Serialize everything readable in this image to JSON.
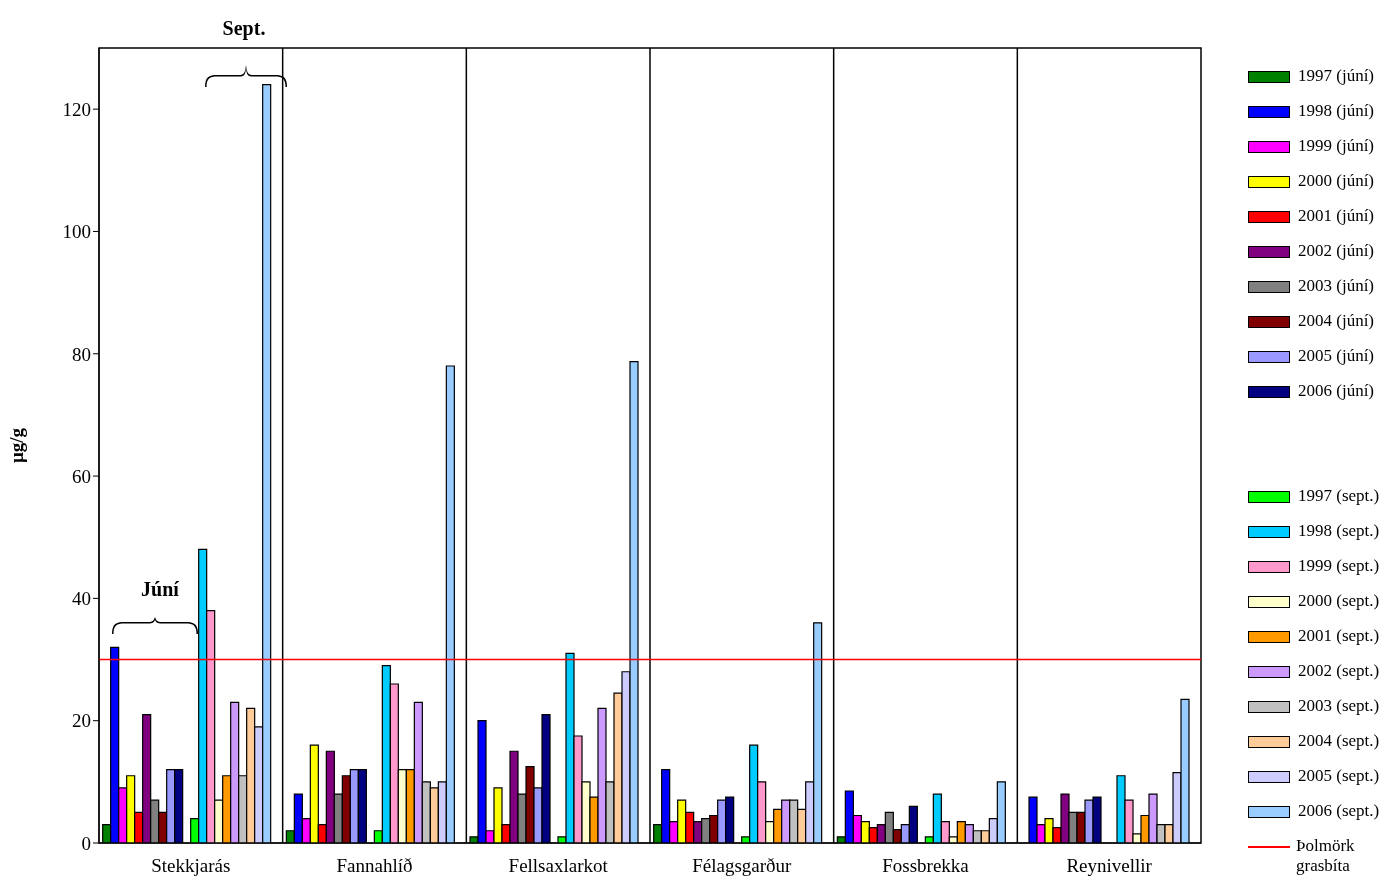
{
  "chart_data": {
    "type": "bar",
    "ylabel": "µg/g",
    "categories": [
      "Stekkjarás",
      "Fannahlíð",
      "Fellsaxlarkot",
      "Félagsgarður",
      "Fossbrekka",
      "Reynivellir"
    ],
    "series": [
      {
        "name": "1997 (júní)",
        "color": "#008000",
        "values": [
          3,
          2,
          1,
          3,
          1,
          null
        ]
      },
      {
        "name": "1998 (júní)",
        "color": "#0000ff",
        "values": [
          32,
          8,
          20,
          12,
          8.5,
          7.5
        ]
      },
      {
        "name": "1999 (júní)",
        "color": "#ff00ff",
        "values": [
          9,
          4,
          2,
          3.5,
          4.5,
          3
        ]
      },
      {
        "name": "2000 (júní)",
        "color": "#ffff00",
        "values": [
          11,
          16,
          9,
          7,
          3.5,
          4
        ]
      },
      {
        "name": "2001 (júní)",
        "color": "#ff0000",
        "values": [
          5,
          3,
          3,
          5,
          2.5,
          2.5
        ]
      },
      {
        "name": "2002 (júní)",
        "color": "#800080",
        "values": [
          21,
          15,
          15,
          3.5,
          3,
          8
        ]
      },
      {
        "name": "2003 (júní)",
        "color": "#808080",
        "values": [
          7,
          8,
          8,
          4,
          5,
          5
        ]
      },
      {
        "name": "2004 (júní)",
        "color": "#800000",
        "values": [
          5,
          11,
          12.5,
          4.5,
          2.2,
          5
        ]
      },
      {
        "name": "2005 (júní)",
        "color": "#9999ff",
        "values": [
          12,
          12,
          9,
          7,
          3,
          7
        ]
      },
      {
        "name": "2006 (júní)",
        "color": "#000080",
        "values": [
          12,
          12,
          21,
          7.5,
          6,
          7.5
        ]
      },
      {
        "name": "1997 (sept.)",
        "color": "#00ff00",
        "values": [
          4,
          2,
          1,
          1,
          1,
          null
        ]
      },
      {
        "name": "1998 (sept.)",
        "color": "#00ccff",
        "values": [
          48,
          29,
          31,
          16,
          8,
          11
        ]
      },
      {
        "name": "1999 (sept.)",
        "color": "#ff99cc",
        "values": [
          38,
          26,
          17.5,
          10,
          3.5,
          7
        ]
      },
      {
        "name": "2000 (sept.)",
        "color": "#ffffcc",
        "values": [
          7,
          12,
          10,
          3.5,
          1,
          1.5
        ]
      },
      {
        "name": "2001 (sept.)",
        "color": "#ff9900",
        "values": [
          11,
          12,
          7.5,
          5.5,
          3.5,
          4.5
        ]
      },
      {
        "name": "2002 (sept.)",
        "color": "#cc99ff",
        "values": [
          23,
          23,
          22,
          7,
          3,
          8
        ]
      },
      {
        "name": "2003 (sept.)",
        "color": "#c0c0c0",
        "values": [
          11,
          10,
          10,
          7,
          2,
          3
        ]
      },
      {
        "name": "2004 (sept.)",
        "color": "#ffcc99",
        "values": [
          22,
          9,
          24.5,
          5.5,
          2,
          3
        ]
      },
      {
        "name": "2005 (sept.)",
        "color": "#ccccff",
        "values": [
          19,
          10,
          28,
          10,
          4,
          11.5
        ]
      },
      {
        "name": "2006 (sept.)",
        "color": "#99ccff",
        "values": [
          124,
          78,
          78.7,
          36,
          10,
          23.5
        ]
      }
    ],
    "ylim": [
      0,
      130
    ],
    "yticks": [
      0,
      20,
      40,
      60,
      80,
      100,
      120
    ],
    "grid": "x",
    "legend": "right",
    "ref_lines": [
      {
        "axis": "y",
        "value": 30,
        "label": "Þolmörk grasbíta",
        "color": "#ff0000"
      }
    ],
    "annotations": [
      "Júní",
      "Sept."
    ]
  }
}
